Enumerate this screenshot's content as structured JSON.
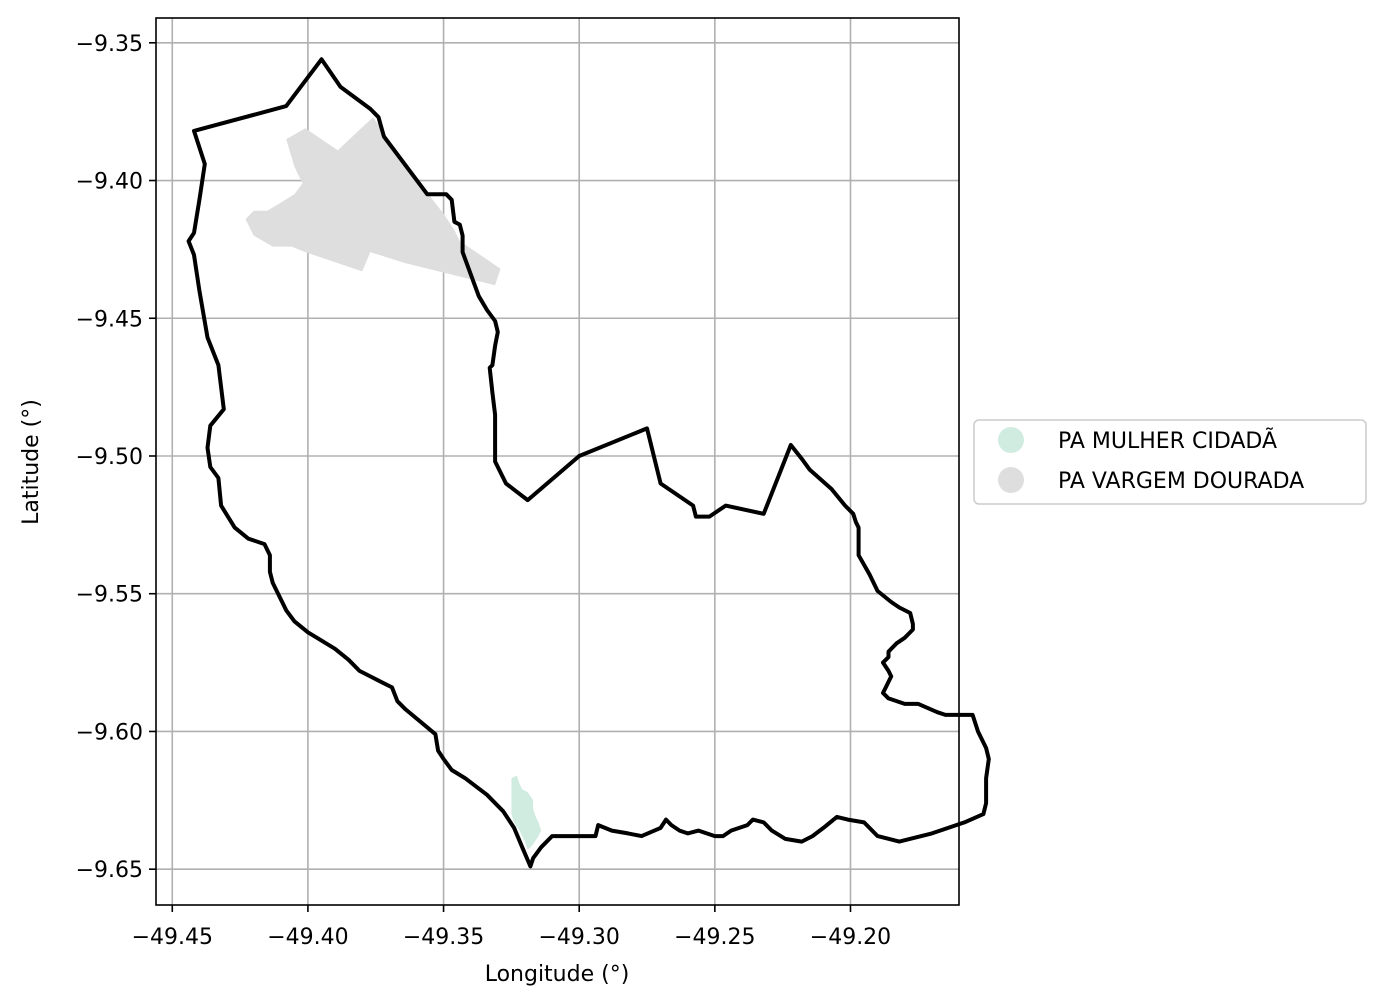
{
  "chart_data": {
    "type": "map",
    "xlabel": "Longitude (°)",
    "ylabel": "Latitude (°)",
    "xlim": [
      -49.456,
      -49.16
    ],
    "ylim": [
      -9.663,
      -9.341
    ],
    "grid": true,
    "x_ticks": [
      {
        "value": -49.45,
        "label": "−49.45"
      },
      {
        "value": -49.4,
        "label": "−49.40"
      },
      {
        "value": -49.35,
        "label": "−49.35"
      },
      {
        "value": -49.3,
        "label": "−49.30"
      },
      {
        "value": -49.25,
        "label": "−49.25"
      },
      {
        "value": -49.2,
        "label": "−49.20"
      }
    ],
    "y_ticks": [
      {
        "value": -9.35,
        "label": "−9.35"
      },
      {
        "value": -9.4,
        "label": "−9.40"
      },
      {
        "value": -9.45,
        "label": "−9.45"
      },
      {
        "value": -9.5,
        "label": "−9.50"
      },
      {
        "value": -9.55,
        "label": "−9.55"
      },
      {
        "value": -9.6,
        "label": "−9.60"
      },
      {
        "value": -9.65,
        "label": "−9.65"
      }
    ],
    "legend_placement": "center-right-outside",
    "legend": [
      {
        "label": "PA MULHER CIDADÃ",
        "color": "#d0ece0"
      },
      {
        "label": "PA VARGEM DOURADA",
        "color": "#dedede"
      }
    ],
    "boundary": {
      "color": "#000000",
      "coords": [
        [
          -49.442,
          -9.382
        ],
        [
          -49.408,
          -9.373
        ],
        [
          -49.395,
          -9.356
        ],
        [
          -49.388,
          -9.366
        ],
        [
          -49.377,
          -9.374
        ],
        [
          -49.374,
          -9.377
        ],
        [
          -49.372,
          -9.384
        ],
        [
          -49.356,
          -9.405
        ],
        [
          -49.349,
          -9.405
        ],
        [
          -49.347,
          -9.407
        ],
        [
          -49.346,
          -9.415
        ],
        [
          -49.344,
          -9.416
        ],
        [
          -49.343,
          -9.42
        ],
        [
          -49.343,
          -9.426
        ],
        [
          -49.34,
          -9.434
        ],
        [
          -49.337,
          -9.442
        ],
        [
          -49.334,
          -9.447
        ],
        [
          -49.331,
          -9.451
        ],
        [
          -49.33,
          -9.455
        ],
        [
          -49.331,
          -9.46
        ],
        [
          -49.332,
          -9.467
        ],
        [
          -49.333,
          -9.468
        ],
        [
          -49.332,
          -9.477
        ],
        [
          -49.331,
          -9.485
        ],
        [
          -49.331,
          -9.502
        ],
        [
          -49.327,
          -9.51
        ],
        [
          -49.323,
          -9.513
        ],
        [
          -49.319,
          -9.516
        ],
        [
          -49.3,
          -9.5
        ],
        [
          -49.275,
          -9.49
        ],
        [
          -49.27,
          -9.51
        ],
        [
          -49.258,
          -9.518
        ],
        [
          -49.257,
          -9.522
        ],
        [
          -49.252,
          -9.522
        ],
        [
          -49.246,
          -9.518
        ],
        [
          -49.232,
          -9.521
        ],
        [
          -49.222,
          -9.496
        ],
        [
          -49.218,
          -9.501
        ],
        [
          -49.215,
          -9.505
        ],
        [
          -49.207,
          -9.512
        ],
        [
          -49.202,
          -9.518
        ],
        [
          -49.199,
          -9.521
        ],
        [
          -49.198,
          -9.524
        ],
        [
          -49.197,
          -9.526
        ],
        [
          -49.197,
          -9.536
        ],
        [
          -49.193,
          -9.543
        ],
        [
          -49.19,
          -9.549
        ],
        [
          -49.185,
          -9.553
        ],
        [
          -49.182,
          -9.555
        ],
        [
          -49.178,
          -9.557
        ],
        [
          -49.177,
          -9.561
        ],
        [
          -49.177,
          -9.563
        ],
        [
          -49.18,
          -9.566
        ],
        [
          -49.183,
          -9.568
        ],
        [
          -49.186,
          -9.571
        ],
        [
          -49.186,
          -9.573
        ],
        [
          -49.188,
          -9.575
        ],
        [
          -49.186,
          -9.578
        ],
        [
          -49.185,
          -9.58
        ],
        [
          -49.187,
          -9.584
        ],
        [
          -49.188,
          -9.586
        ],
        [
          -49.186,
          -9.588
        ],
        [
          -49.18,
          -9.59
        ],
        [
          -49.175,
          -9.59
        ],
        [
          -49.168,
          -9.593
        ],
        [
          -49.165,
          -9.594
        ],
        [
          -49.16,
          -9.594
        ],
        [
          -49.155,
          -9.594
        ],
        [
          -49.153,
          -9.6
        ],
        [
          -49.15,
          -9.606
        ],
        [
          -49.149,
          -9.61
        ],
        [
          -49.15,
          -9.617
        ],
        [
          -49.15,
          -9.626
        ],
        [
          -49.151,
          -9.63
        ],
        [
          -49.158,
          -9.633
        ],
        [
          -49.17,
          -9.637
        ],
        [
          -49.182,
          -9.64
        ],
        [
          -49.19,
          -9.638
        ],
        [
          -49.195,
          -9.633
        ],
        [
          -49.201,
          -9.632
        ],
        [
          -49.205,
          -9.631
        ],
        [
          -49.21,
          -9.635
        ],
        [
          -49.214,
          -9.638
        ],
        [
          -49.218,
          -9.64
        ],
        [
          -49.224,
          -9.639
        ],
        [
          -49.229,
          -9.636
        ],
        [
          -49.232,
          -9.633
        ],
        [
          -49.236,
          -9.632
        ],
        [
          -49.238,
          -9.634
        ],
        [
          -49.244,
          -9.636
        ],
        [
          -49.247,
          -9.638
        ],
        [
          -49.25,
          -9.638
        ],
        [
          -49.253,
          -9.637
        ],
        [
          -49.256,
          -9.636
        ],
        [
          -49.26,
          -9.637
        ],
        [
          -49.263,
          -9.636
        ],
        [
          -49.266,
          -9.634
        ],
        [
          -49.268,
          -9.632
        ],
        [
          -49.27,
          -9.635
        ],
        [
          -49.277,
          -9.638
        ],
        [
          -49.282,
          -9.637
        ],
        [
          -49.288,
          -9.636
        ],
        [
          -49.293,
          -9.634
        ],
        [
          -49.294,
          -9.638
        ],
        [
          -49.31,
          -9.638
        ],
        [
          -49.314,
          -9.642
        ],
        [
          -49.317,
          -9.646
        ],
        [
          -49.318,
          -9.649
        ],
        [
          -49.321,
          -9.642
        ],
        [
          -49.324,
          -9.635
        ],
        [
          -49.328,
          -9.629
        ],
        [
          -49.334,
          -9.623
        ],
        [
          -49.342,
          -9.617
        ],
        [
          -49.347,
          -9.614
        ],
        [
          -49.35,
          -9.61
        ],
        [
          -49.352,
          -9.607
        ],
        [
          -49.353,
          -9.601
        ],
        [
          -49.364,
          -9.592
        ],
        [
          -49.367,
          -9.589
        ],
        [
          -49.369,
          -9.584
        ],
        [
          -49.377,
          -9.58
        ],
        [
          -49.381,
          -9.578
        ],
        [
          -49.385,
          -9.574
        ],
        [
          -49.39,
          -9.57
        ],
        [
          -49.395,
          -9.567
        ],
        [
          -49.4,
          -9.564
        ],
        [
          -49.405,
          -9.56
        ],
        [
          -49.408,
          -9.556
        ],
        [
          -49.411,
          -9.55
        ],
        [
          -49.413,
          -9.546
        ],
        [
          -49.414,
          -9.542
        ],
        [
          -49.414,
          -9.536
        ],
        [
          -49.416,
          -9.532
        ],
        [
          -49.422,
          -9.53
        ],
        [
          -49.427,
          -9.526
        ],
        [
          -49.432,
          -9.518
        ],
        [
          -49.433,
          -9.508
        ],
        [
          -49.436,
          -9.504
        ],
        [
          -49.437,
          -9.497
        ],
        [
          -49.436,
          -9.489
        ],
        [
          -49.431,
          -9.483
        ],
        [
          -49.433,
          -9.467
        ],
        [
          -49.437,
          -9.457
        ],
        [
          -49.44,
          -9.44
        ],
        [
          -49.442,
          -9.427
        ],
        [
          -49.444,
          -9.422
        ],
        [
          -49.442,
          -9.419
        ],
        [
          -49.44,
          -9.407
        ],
        [
          -49.438,
          -9.394
        ],
        [
          -49.442,
          -9.382
        ]
      ]
    },
    "regions": [
      {
        "label": "PA VARGEM DOURADA",
        "color": "#dedede",
        "coords": [
          [
            -49.408,
            -9.385
          ],
          [
            -49.401,
            -9.381
          ],
          [
            -49.389,
            -9.389
          ],
          [
            -49.376,
            -9.377
          ],
          [
            -49.371,
            -9.384
          ],
          [
            -49.357,
            -9.403
          ],
          [
            -49.354,
            -9.407
          ],
          [
            -49.35,
            -9.412
          ],
          [
            -49.346,
            -9.418
          ],
          [
            -49.344,
            -9.422
          ],
          [
            -49.338,
            -9.426
          ],
          [
            -49.329,
            -9.432
          ],
          [
            -49.331,
            -9.438
          ],
          [
            -49.364,
            -9.43
          ],
          [
            -49.377,
            -9.426
          ],
          [
            -49.38,
            -9.433
          ],
          [
            -49.401,
            -9.426
          ],
          [
            -49.406,
            -9.424
          ],
          [
            -49.413,
            -9.424
          ],
          [
            -49.42,
            -9.42
          ],
          [
            -49.423,
            -9.414
          ],
          [
            -49.42,
            -9.411
          ],
          [
            -49.415,
            -9.411
          ],
          [
            -49.41,
            -9.408
          ],
          [
            -49.405,
            -9.405
          ],
          [
            -49.402,
            -9.401
          ],
          [
            -49.405,
            -9.395
          ],
          [
            -49.408,
            -9.385
          ]
        ]
      },
      {
        "label": "PA MULHER CIDADÃ",
        "color": "#d0ece0",
        "coords": [
          [
            -49.325,
            -9.617
          ],
          [
            -49.323,
            -9.616
          ],
          [
            -49.322,
            -9.619
          ],
          [
            -49.321,
            -9.621
          ],
          [
            -49.319,
            -9.622
          ],
          [
            -49.317,
            -9.625
          ],
          [
            -49.317,
            -9.628
          ],
          [
            -49.316,
            -9.631
          ],
          [
            -49.315,
            -9.633
          ],
          [
            -49.314,
            -9.636
          ],
          [
            -49.315,
            -9.638
          ],
          [
            -49.317,
            -9.641
          ],
          [
            -49.319,
            -9.643
          ],
          [
            -49.32,
            -9.64
          ],
          [
            -49.322,
            -9.636
          ],
          [
            -49.324,
            -9.633
          ],
          [
            -49.325,
            -9.63
          ],
          [
            -49.325,
            -9.626
          ],
          [
            -49.325,
            -9.621
          ],
          [
            -49.325,
            -9.617
          ]
        ]
      }
    ]
  }
}
